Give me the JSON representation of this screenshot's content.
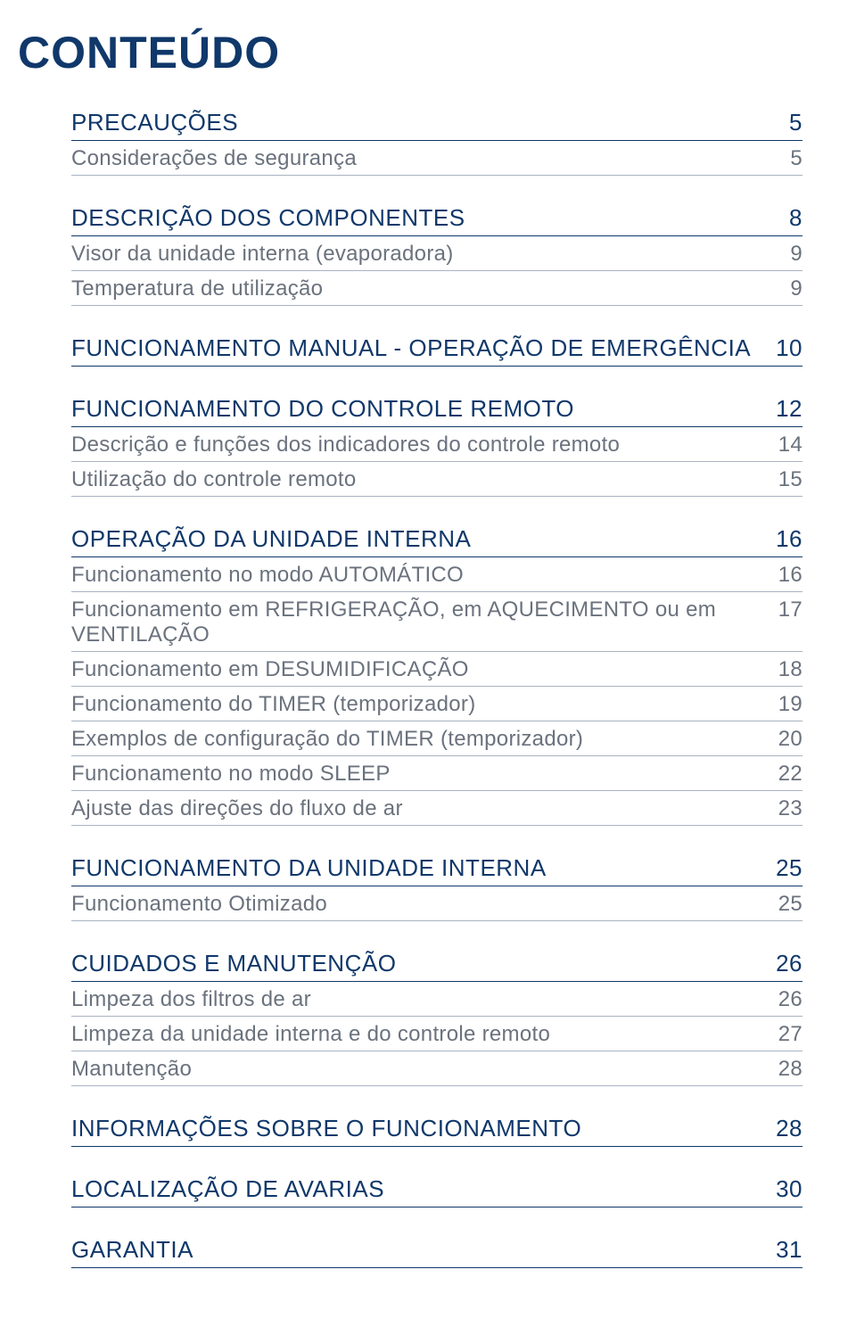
{
  "title": "CONTEÚDO",
  "colors": {
    "heading": "#10386a",
    "section_text": "#10386a",
    "sub_text": "#6a727d",
    "section_rule": "#10386a",
    "sub_rule": "#a8b3c2",
    "background": "#ffffff"
  },
  "typography": {
    "title_fontsize": 50,
    "section_fontsize": 26,
    "sub_fontsize": 24,
    "font_family": "Helvetica Neue Condensed / DIN Condensed",
    "title_weight": 700,
    "section_weight": 400,
    "sub_weight": 300
  },
  "toc": [
    {
      "label": "PRECAUÇÕES",
      "page": "5",
      "type": "section"
    },
    {
      "label": "Considerações de segurança",
      "page": "5",
      "type": "sub"
    },
    {
      "label": "DESCRIÇÃO DOS COMPONENTES",
      "page": "8",
      "type": "section"
    },
    {
      "label": "Visor da unidade interna (evaporadora)",
      "page": "9",
      "type": "sub"
    },
    {
      "label": "Temperatura de utilização",
      "page": "9",
      "type": "sub"
    },
    {
      "label": "FUNCIONAMENTO MANUAL - OPERAÇÃO DE EMERGÊNCIA",
      "page": "10",
      "type": "section"
    },
    {
      "label": "FUNCIONAMENTO DO CONTROLE REMOTO",
      "page": "12",
      "type": "section"
    },
    {
      "label": "Descrição e funções dos indicadores do controle remoto",
      "page": "14",
      "type": "sub"
    },
    {
      "label": "Utilização do controle remoto",
      "page": "15",
      "type": "sub"
    },
    {
      "label": "OPERAÇÃO DA UNIDADE INTERNA",
      "page": "16",
      "type": "section"
    },
    {
      "label": "Funcionamento no modo AUTOMÁTICO",
      "page": "16",
      "type": "sub"
    },
    {
      "label": "Funcionamento em REFRIGERAÇÃO, em AQUECIMENTO ou em VENTILAÇÃO",
      "page": "17",
      "type": "sub"
    },
    {
      "label": "Funcionamento em DESUMIDIFICAÇÃO",
      "page": "18",
      "type": "sub"
    },
    {
      "label": "Funcionamento do TIMER (temporizador)",
      "page": "19",
      "type": "sub"
    },
    {
      "label": "Exemplos de configuração do TIMER (temporizador)",
      "page": "20",
      "type": "sub"
    },
    {
      "label": "Funcionamento no modo SLEEP",
      "page": "22",
      "type": "sub"
    },
    {
      "label": "Ajuste das direções do fluxo de ar",
      "page": "23",
      "type": "sub"
    },
    {
      "label": "FUNCIONAMENTO DA UNIDADE INTERNA",
      "page": "25",
      "type": "section"
    },
    {
      "label": "Funcionamento Otimizado",
      "page": "25",
      "type": "sub"
    },
    {
      "label": "CUIDADOS E MANUTENÇÃO",
      "page": "26",
      "type": "section"
    },
    {
      "label": "Limpeza dos filtros de ar",
      "page": "26",
      "type": "sub"
    },
    {
      "label": "Limpeza da unidade interna e do controle remoto",
      "page": "27",
      "type": "sub"
    },
    {
      "label": "Manutenção",
      "page": "28",
      "type": "sub"
    },
    {
      "label": "INFORMAÇÕES SOBRE O FUNCIONAMENTO",
      "page": "28",
      "type": "section"
    },
    {
      "label": "LOCALIZAÇÃO DE AVARIAS",
      "page": "30",
      "type": "section"
    },
    {
      "label": "GARANTIA",
      "page": "31",
      "type": "section"
    }
  ]
}
